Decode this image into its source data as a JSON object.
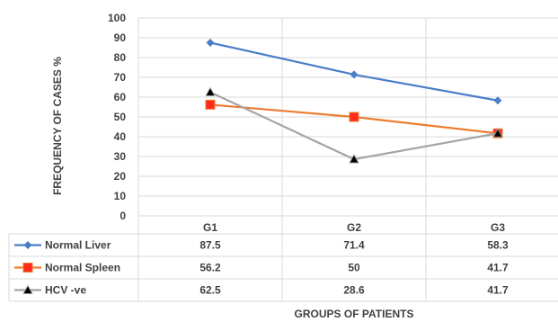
{
  "chart_data": {
    "type": "line",
    "categories": [
      "G1",
      "G2",
      "G3"
    ],
    "series": [
      {
        "name": "Normal Liver",
        "values": [
          87.5,
          71.4,
          58.3
        ],
        "color": "#4a7ec8",
        "marker": "diamond"
      },
      {
        "name": "Normal Spleen",
        "values": [
          56.2,
          50,
          41.7
        ],
        "color": "#ed7d31",
        "marker": "square"
      },
      {
        "name": "HCV -ve",
        "values": [
          62.5,
          28.6,
          41.7
        ],
        "color": "#a5a5a5",
        "marker": "triangle"
      }
    ],
    "table_values": [
      [
        "87.5",
        "71.4",
        "58.3"
      ],
      [
        "56.2",
        "50",
        "41.7"
      ],
      [
        "62.5",
        "28.6",
        "41.7"
      ]
    ],
    "y_ticks": [
      "0",
      "10",
      "20",
      "30",
      "40",
      "50",
      "60",
      "70",
      "80",
      "90",
      "100"
    ],
    "ylim": [
      0,
      100
    ],
    "xlabel": "GROUPS OF PATIENTS",
    "ylabel": "FREQUENCY OF CASES %",
    "grid": true,
    "legend": "data-table"
  }
}
